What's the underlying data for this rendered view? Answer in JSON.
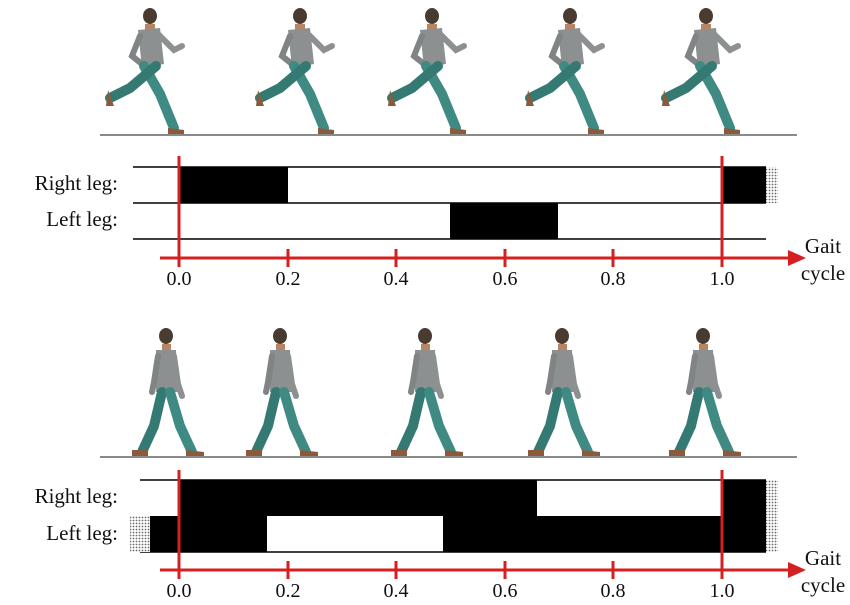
{
  "legs": {
    "right": "Right leg:",
    "left": "Left leg:"
  },
  "axis": {
    "ticks": [
      "0.0",
      "0.2",
      "0.4",
      "0.6",
      "0.8",
      "1.0"
    ],
    "tick_values": [
      0.0,
      0.2,
      0.4,
      0.6,
      0.8,
      1.0
    ],
    "label_line1": "Gait",
    "label_line2": "cycle"
  },
  "colors": {
    "accent": "#d42020",
    "ground": "#8a8a8a",
    "bar": "#000000",
    "shirt": "#8d9090",
    "pants": "#3f8a82",
    "skin": "#c59068",
    "shoe": "#8b5a3c"
  },
  "panels": [
    {
      "gait": "running",
      "figures": 5,
      "right_leg_contact": [
        [
          0.0,
          0.2
        ],
        [
          1.0,
          1.1
        ]
      ],
      "left_leg_contact": [
        [
          0.5,
          0.7
        ]
      ]
    },
    {
      "gait": "walking",
      "figures": 5,
      "right_leg_contact": [
        [
          0.0,
          0.66
        ],
        [
          1.0,
          1.1
        ]
      ],
      "left_leg_contact": [
        [
          -0.1,
          0.16
        ],
        [
          0.49,
          1.1
        ]
      ]
    }
  ]
}
